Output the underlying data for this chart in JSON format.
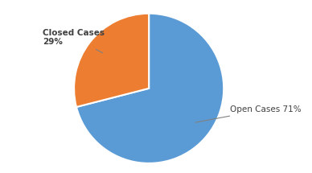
{
  "slices": [
    71,
    29
  ],
  "colors": [
    "#5B9BD5",
    "#ED7D31"
  ],
  "label_open": "Open Cases 71%",
  "label_closed": "Closed Cases\n29%",
  "startangle": 90,
  "background_color": "#ffffff"
}
